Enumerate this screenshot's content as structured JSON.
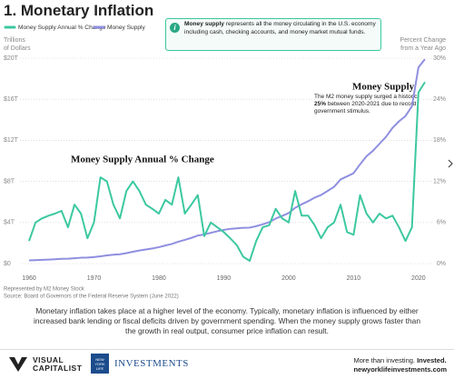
{
  "title": "1. Monetary Inflation",
  "info": {
    "bold": "Money supply",
    "text": "represents all the money circulating in the U.S. economy including cash, checking accounts, and money market mutual funds.",
    "icon": "i"
  },
  "chart_data": {
    "type": "line",
    "y_label": [
      "Trillions",
      "of Dollars"
    ],
    "y2_label": [
      "Percent Change",
      "from a Year Ago"
    ],
    "x": [
      1960,
      1961,
      1962,
      1963,
      1964,
      1965,
      1966,
      1967,
      1968,
      1969,
      1970,
      1971,
      1972,
      1973,
      1974,
      1975,
      1976,
      1977,
      1978,
      1979,
      1980,
      1981,
      1982,
      1983,
      1984,
      1985,
      1986,
      1987,
      1988,
      1989,
      1990,
      1991,
      1992,
      1993,
      1994,
      1995,
      1996,
      1997,
      1998,
      1999,
      2000,
      2001,
      2002,
      2003,
      2004,
      2005,
      2006,
      2007,
      2008,
      2009,
      2010,
      2011,
      2012,
      2013,
      2014,
      2015,
      2016,
      2017,
      2018,
      2019,
      2020,
      2021
    ],
    "xlim": [
      1958.6,
      2022.4
    ],
    "xticks": [
      1960,
      1970,
      1980,
      1990,
      2000,
      2010,
      2020
    ],
    "ylim": [
      0,
      20
    ],
    "yticks": [
      {
        "value": 0,
        "label": "$0"
      },
      {
        "value": 4,
        "label": "$4T"
      },
      {
        "value": 8,
        "label": "$8T"
      },
      {
        "value": 12,
        "label": "$12T"
      },
      {
        "value": 16,
        "label": "$16T"
      },
      {
        "value": 20,
        "label": "$20T"
      }
    ],
    "y2lim": [
      0,
      30
    ],
    "y2ticks": [
      {
        "value": 0,
        "label": "0%"
      },
      {
        "value": 6,
        "label": "6%"
      },
      {
        "value": 12,
        "label": "12%"
      },
      {
        "value": 18,
        "label": "18%"
      },
      {
        "value": 24,
        "label": "24%"
      },
      {
        "value": 30,
        "label": "30%"
      }
    ],
    "grid": true,
    "series": [
      {
        "name": "Money Supply Annual % Change",
        "color": "#3cc8a0",
        "axis": "y2",
        "values": [
          3.3,
          6,
          6.6,
          7,
          7.3,
          7.7,
          5.3,
          8.6,
          7.3,
          3.7,
          6,
          12.6,
          12,
          8.6,
          6.6,
          10.6,
          12,
          10.6,
          8.6,
          8,
          7.3,
          9.3,
          8.6,
          12.6,
          7.3,
          8.6,
          10,
          4,
          6,
          5.3,
          4.6,
          3.7,
          2.7,
          1,
          0.4,
          3.3,
          5.3,
          5.6,
          8,
          6.6,
          6,
          10.6,
          7,
          7,
          5.6,
          3.7,
          5.3,
          6,
          8.6,
          4.6,
          4.2,
          10,
          7.3,
          6,
          7.3,
          6.6,
          7,
          5.3,
          3.3,
          5.3,
          25,
          26.5
        ]
      },
      {
        "name": "Money Supply",
        "color": "#8f8fe0",
        "values": [
          0.31,
          0.33,
          0.36,
          0.39,
          0.42,
          0.46,
          0.48,
          0.52,
          0.57,
          0.59,
          0.63,
          0.71,
          0.8,
          0.86,
          0.91,
          1.02,
          1.15,
          1.27,
          1.37,
          1.47,
          1.6,
          1.76,
          1.91,
          2.13,
          2.31,
          2.5,
          2.73,
          2.83,
          2.99,
          3.15,
          3.28,
          3.38,
          3.43,
          3.48,
          3.5,
          3.64,
          3.82,
          4.03,
          4.38,
          4.64,
          4.92,
          5.43,
          5.77,
          6.07,
          6.42,
          6.68,
          7.07,
          7.47,
          8.19,
          8.49,
          8.8,
          9.66,
          10.45,
          10.99,
          11.67,
          12.34,
          13.21,
          13.85,
          14.36,
          15.32,
          19.1,
          19.9
        ]
      }
    ],
    "annotations": [
      {
        "text": "Money Supply Annual % Change"
      },
      {
        "text": "Money Supply"
      }
    ],
    "annotation_note": {
      "before": "The M2 money supply surged a historic",
      "bold": "25%",
      "after": "between 2020-2021 due to record government stimulus."
    },
    "notes": [
      "Represented by M2 Money Stock",
      "Source: Board of Governors of the Federal Reserve System (June 2022)"
    ]
  },
  "paragraph": "Monetary inflation takes place at a higher level of the economy. Typically, monetary inflation is influenced by either increased bank lending or fiscal deficits driven by government spending. When the money supply grows faster than the growth in real output, consumer price inflation can result.",
  "footer": {
    "brand": [
      "VISUAL",
      "CAPITALIST"
    ],
    "partner_badge": [
      "NEW",
      "YORK",
      "LIFE"
    ],
    "partner": "INVESTMENTS",
    "tagline": "More than investing.",
    "tagline_bold": "Invested.",
    "url": "newyorklifeinvestments.com"
  }
}
